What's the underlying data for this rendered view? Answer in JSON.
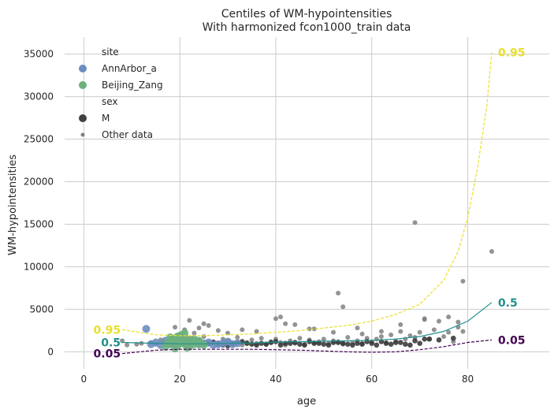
{
  "chart_data": {
    "type": "scatter",
    "title": "Centiles of WM-hypointensities",
    "subtitle": "With harmonized fcon1000_train data",
    "xlabel": "age",
    "ylabel": "WM-hypointensities",
    "xlim": [
      -4,
      97
    ],
    "ylim": [
      -2000,
      37000
    ],
    "x_ticks": [
      0,
      20,
      40,
      60,
      80
    ],
    "y_ticks": [
      0,
      5000,
      10000,
      15000,
      20000,
      25000,
      30000,
      35000
    ],
    "grid": true,
    "legend_position": "top-left",
    "legend": {
      "site_title": "site",
      "sites": [
        {
          "name": "AnnArbor_a",
          "color": "#6c8ebf"
        },
        {
          "name": "Beijing_Zang",
          "color": "#6db07f"
        }
      ],
      "sex_title": "sex",
      "sex_items": [
        {
          "name": "M",
          "color": "#404040"
        }
      ],
      "other_label": "Other data",
      "other_color": "#808080"
    },
    "centiles": [
      {
        "name": "0.95",
        "color": "#e8e02a",
        "dashed": true,
        "x": [
          8,
          15,
          20,
          25,
          30,
          35,
          40,
          45,
          50,
          55,
          60,
          65,
          70,
          75,
          78,
          80,
          82,
          84,
          85
        ],
        "y": [
          2600,
          2000,
          1900,
          1900,
          2000,
          2100,
          2300,
          2500,
          2800,
          3100,
          3600,
          4400,
          5600,
          8400,
          11800,
          15800,
          21500,
          29000,
          35200
        ]
      },
      {
        "name": "0.5",
        "color": "#21918c",
        "dashed": false,
        "x": [
          8,
          15,
          20,
          25,
          30,
          35,
          40,
          45,
          50,
          55,
          60,
          65,
          70,
          75,
          80,
          85
        ],
        "y": [
          1100,
          1000,
          950,
          950,
          1000,
          1050,
          1150,
          1200,
          1250,
          1300,
          1350,
          1500,
          1800,
          2400,
          3600,
          5800
        ]
      },
      {
        "name": "0.05",
        "color": "#440154",
        "dashed": true,
        "x": [
          8,
          15,
          20,
          25,
          30,
          35,
          40,
          45,
          50,
          55,
          60,
          65,
          70,
          75,
          80,
          85
        ],
        "y": [
          -200,
          200,
          300,
          300,
          300,
          300,
          250,
          200,
          100,
          0,
          -50,
          0,
          250,
          600,
          1100,
          1400
        ]
      }
    ],
    "other_data": {
      "x": [
        8,
        9,
        11,
        12,
        14,
        15,
        16,
        17,
        18,
        19,
        20,
        21,
        22,
        23,
        24,
        25,
        26,
        27,
        28,
        29,
        30,
        31,
        32,
        33,
        34,
        35,
        36,
        37,
        38,
        39,
        40,
        41,
        42,
        43,
        44,
        45,
        46,
        47,
        48,
        49,
        50,
        51,
        52,
        53,
        54,
        55,
        56,
        57,
        58,
        59,
        60,
        61,
        62,
        63,
        64,
        65,
        66,
        67,
        68,
        69,
        70,
        71,
        72,
        73,
        74,
        75,
        76,
        77,
        78,
        79,
        22,
        24,
        26,
        19,
        21,
        23,
        25,
        40,
        41,
        42,
        53,
        54,
        69,
        79,
        85,
        44,
        47,
        52,
        57,
        62,
        66,
        71,
        76,
        78,
        36,
        33,
        30,
        28,
        48,
        58
      ],
      "y": [
        1300,
        800,
        900,
        1000,
        1100,
        900,
        1400,
        1200,
        1500,
        1000,
        1700,
        1300,
        1600,
        1100,
        1400,
        1800,
        900,
        1200,
        1000,
        1500,
        1300,
        900,
        1700,
        800,
        1100,
        1400,
        1000,
        1600,
        900,
        1200,
        1500,
        1100,
        800,
        1300,
        1000,
        1600,
        900,
        1400,
        1100,
        1200,
        1500,
        1000,
        1300,
        1200,
        900,
        1700,
        1100,
        1300,
        1000,
        1600,
        1200,
        1500,
        1800,
        1100,
        2000,
        1300,
        2400,
        1500,
        1900,
        1700,
        2300,
        3800,
        1500,
        2600,
        3600,
        1800,
        2300,
        1200,
        2900,
        2400,
        3700,
        2800,
        3100,
        2900,
        2600,
        2200,
        3300,
        3900,
        4100,
        3300,
        6900,
        5300,
        15200,
        8300,
        11800,
        3200,
        2700,
        2300,
        2800,
        2400,
        3200,
        3900,
        4100,
        3500,
        2400,
        2600,
        2200,
        2500,
        2700,
        2100
      ]
    },
    "male_data": {
      "x": [
        18,
        20,
        22,
        24,
        26,
        28,
        30,
        32,
        34,
        36,
        38,
        40,
        42,
        44,
        46,
        48,
        50,
        52,
        54,
        56,
        58,
        60,
        62,
        64,
        66,
        68,
        70,
        72,
        21,
        23,
        25,
        27,
        29,
        31,
        33,
        35,
        37,
        39,
        41,
        43,
        45,
        47,
        49,
        51,
        53,
        55,
        57,
        59,
        61,
        63,
        65,
        67,
        69,
        71,
        74,
        77
      ],
      "y": [
        900,
        1100,
        800,
        1200,
        1000,
        900,
        700,
        1100,
        1000,
        800,
        900,
        1200,
        1000,
        1100,
        800,
        1000,
        900,
        1100,
        1000,
        800,
        900,
        1000,
        1200,
        900,
        1100,
        800,
        1000,
        1500,
        1300,
        1000,
        900,
        1100,
        800,
        1000,
        1200,
        900,
        1000,
        1100,
        800,
        1000,
        900,
        1200,
        1000,
        800,
        1100,
        900,
        1000,
        1200,
        800,
        1000,
        1100,
        900,
        1300,
        1500,
        1400,
        1600
      ]
    },
    "site_data": [
      {
        "name": "AnnArbor_a",
        "x": [
          13,
          14,
          15,
          16,
          17,
          18,
          19,
          20,
          21,
          22,
          23,
          24,
          25,
          26,
          27,
          28,
          29,
          30,
          31,
          32,
          17,
          19,
          21,
          23
        ],
        "y": [
          2700,
          900,
          1100,
          800,
          1000,
          1200,
          900,
          1100,
          1000,
          800,
          1200,
          900,
          1000,
          1100,
          800,
          900,
          1000,
          1200,
          900,
          1000,
          1300,
          1500,
          1400,
          1200
        ]
      },
      {
        "name": "Beijing_Zang",
        "x": [
          17,
          17.5,
          18,
          18.5,
          19,
          19.5,
          20,
          20.5,
          21,
          21.5,
          22,
          22.5,
          23,
          23.5,
          24,
          24.5,
          25,
          18,
          19,
          20,
          21,
          22,
          23,
          24,
          19.5,
          20.5,
          21.5,
          22.5
        ],
        "y": [
          600,
          1200,
          900,
          1500,
          1100,
          700,
          1300,
          1000,
          1600,
          800,
          1200,
          1400,
          900,
          1100,
          1300,
          1000,
          800,
          1700,
          400,
          1900,
          2200,
          600,
          1500,
          900,
          1800,
          2000,
          500,
          1300
        ]
      }
    ]
  }
}
